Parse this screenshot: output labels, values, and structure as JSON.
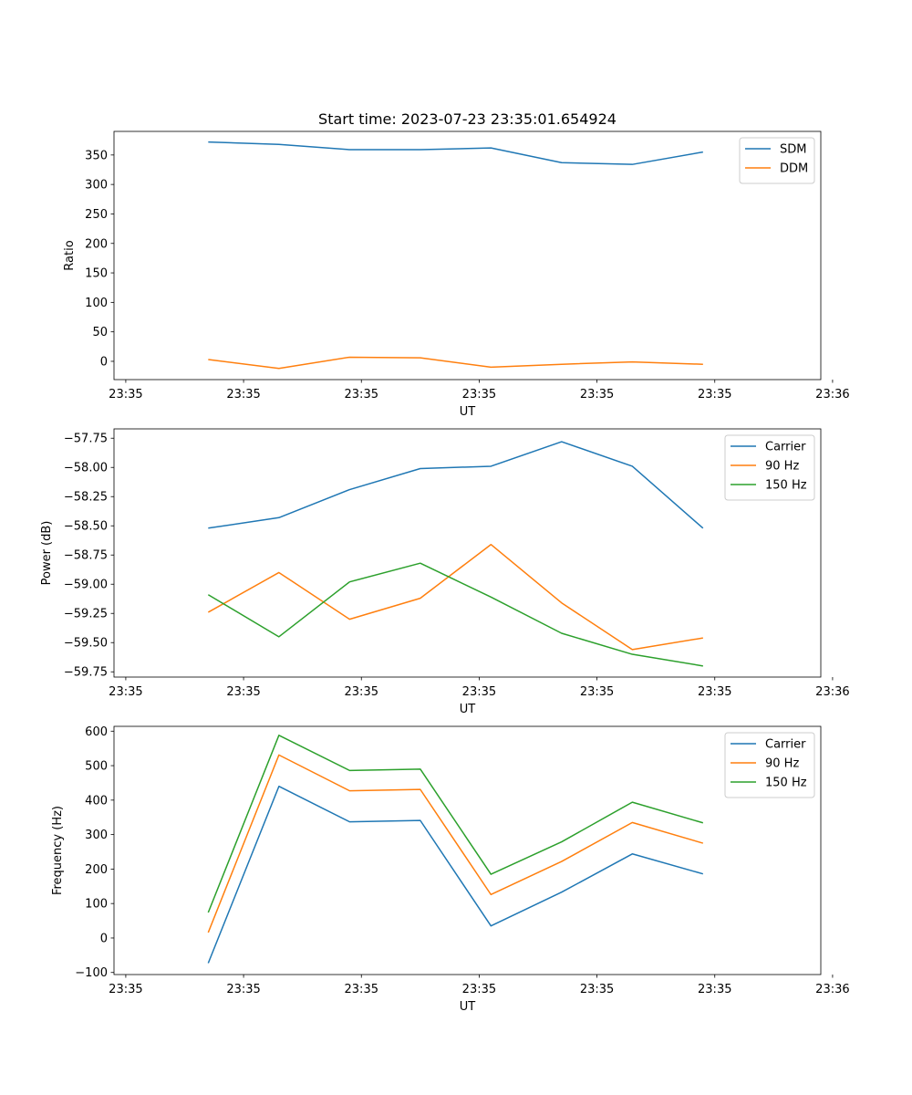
{
  "title": "Start time: 2023-07-23 23:35:01.654924",
  "colors": {
    "c0": "#1f77b4",
    "c1": "#ff7f0e",
    "c2": "#2ca02c"
  },
  "chart_data": [
    {
      "type": "line",
      "title": "Start time: 2023-07-23 23:35:01.654924",
      "xlabel": "UT",
      "ylabel": "Ratio",
      "x": [
        1.1,
        1.4,
        1.7,
        2.0,
        2.3,
        2.6,
        2.9,
        3.2
      ],
      "xlim": [
        0.7,
        3.7
      ],
      "xticks": [
        0.75,
        1.25,
        1.75,
        2.25,
        2.75,
        3.25,
        3.75
      ],
      "xticklabels": [
        "23:35",
        "23:35",
        "23:35",
        "23:35",
        "23:35",
        "23:35",
        "23:36"
      ],
      "ylim": [
        -31,
        390
      ],
      "yticks": [
        0,
        50,
        100,
        150,
        200,
        250,
        300,
        350
      ],
      "yticklabels": [
        "0",
        "50",
        "100",
        "150",
        "200",
        "250",
        "300",
        "350"
      ],
      "legend_position": "top-right",
      "series": [
        {
          "name": "SDM",
          "color": "#1f77b4",
          "values": [
            372,
            368,
            359,
            359,
            362,
            337,
            334,
            355
          ]
        },
        {
          "name": "DDM",
          "color": "#ff7f0e",
          "values": [
            3,
            -12,
            7,
            6,
            -10,
            -5,
            -1,
            -5
          ]
        }
      ]
    },
    {
      "type": "line",
      "xlabel": "UT",
      "ylabel": "Power (dB)",
      "x": [
        1.1,
        1.4,
        1.7,
        2.0,
        2.3,
        2.6,
        2.9,
        3.2
      ],
      "xlim": [
        0.7,
        3.7
      ],
      "xticks": [
        0.75,
        1.25,
        1.75,
        2.25,
        2.75,
        3.25,
        3.75
      ],
      "xticklabels": [
        "23:35",
        "23:35",
        "23:35",
        "23:35",
        "23:35",
        "23:35",
        "23:36"
      ],
      "ylim": [
        -59.795,
        -57.67
      ],
      "yticks": [
        -59.75,
        -59.5,
        -59.25,
        -59.0,
        -58.75,
        -58.5,
        -58.25,
        -58.0,
        -57.75
      ],
      "yticklabels": [
        "−59.75",
        "−59.50",
        "−59.25",
        "−59.00",
        "−58.75",
        "−58.50",
        "−58.25",
        "−58.00",
        "−57.75"
      ],
      "legend_position": "top-right",
      "series": [
        {
          "name": "Carrier",
          "color": "#1f77b4",
          "values": [
            -58.52,
            -58.43,
            -58.19,
            -58.01,
            -57.99,
            -57.78,
            -57.99,
            -58.52
          ]
        },
        {
          "name": "90 Hz",
          "color": "#ff7f0e",
          "values": [
            -59.24,
            -58.9,
            -59.3,
            -59.12,
            -58.66,
            -59.16,
            -59.56,
            -59.46
          ]
        },
        {
          "name": "150 Hz",
          "color": "#2ca02c",
          "values": [
            -59.09,
            -59.45,
            -58.98,
            -58.82,
            -59.11,
            -59.42,
            -59.6,
            -59.7
          ]
        }
      ]
    },
    {
      "type": "line",
      "xlabel": "UT",
      "ylabel": "Frequency (Hz)",
      "x": [
        1.1,
        1.4,
        1.7,
        2.0,
        2.3,
        2.6,
        2.9,
        3.2
      ],
      "xlim": [
        0.7,
        3.7
      ],
      "xticks": [
        0.75,
        1.25,
        1.75,
        2.25,
        2.75,
        3.25,
        3.75
      ],
      "xticklabels": [
        "23:35",
        "23:35",
        "23:35",
        "23:35",
        "23:35",
        "23:35",
        "23:36"
      ],
      "ylim": [
        -106,
        614
      ],
      "yticks": [
        -100,
        0,
        100,
        200,
        300,
        400,
        500,
        600
      ],
      "yticklabels": [
        "−100",
        "0",
        "100",
        "200",
        "300",
        "400",
        "500",
        "600"
      ],
      "legend_position": "top-right",
      "series": [
        {
          "name": "Carrier",
          "color": "#1f77b4",
          "values": [
            -73,
            440,
            337,
            341,
            35,
            133,
            244,
            186
          ]
        },
        {
          "name": "90 Hz",
          "color": "#ff7f0e",
          "values": [
            16,
            531,
            427,
            431,
            126,
            222,
            335,
            275
          ]
        },
        {
          "name": "150 Hz",
          "color": "#2ca02c",
          "values": [
            74,
            588,
            486,
            490,
            185,
            279,
            394,
            334
          ]
        }
      ]
    }
  ]
}
